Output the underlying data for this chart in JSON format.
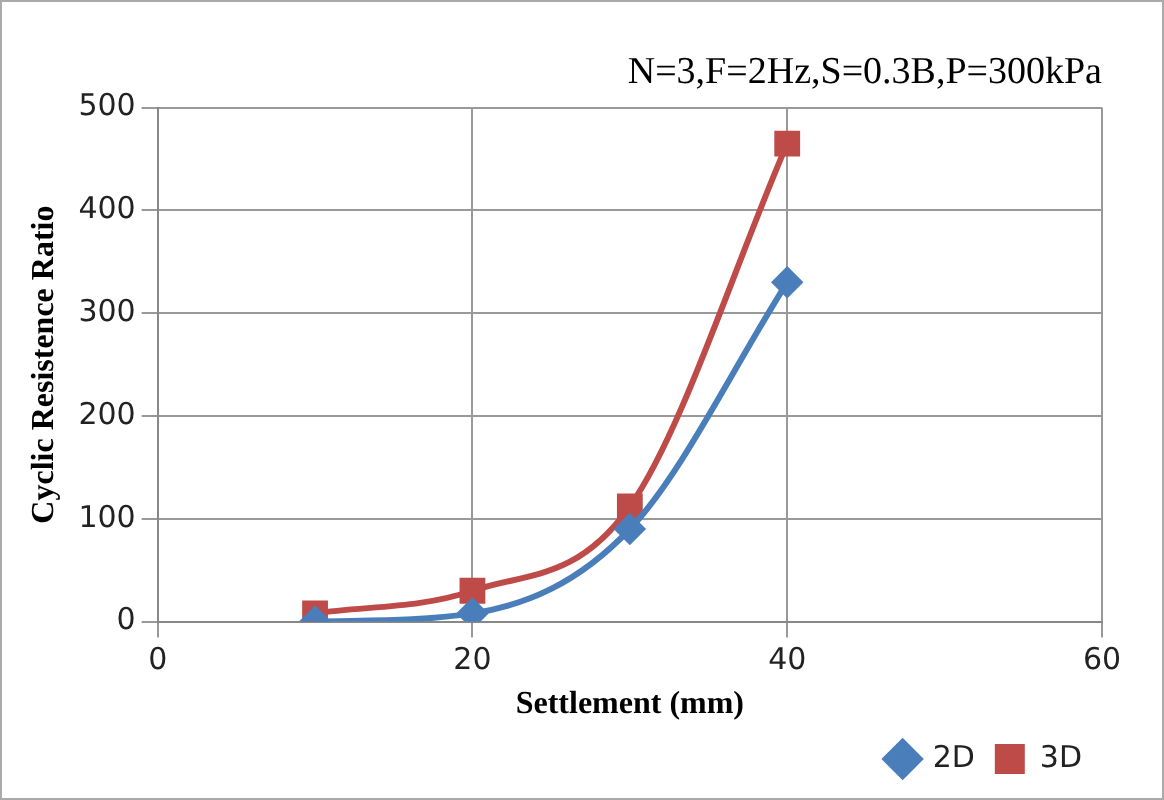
{
  "chart_data": {
    "type": "line",
    "title": "N=3,F=2Hz,S=0.3B,P=300kPa",
    "xlabel": "Settlement (mm)",
    "ylabel": "Cyclic Resistence Ratio",
    "series": [
      {
        "name": "2D",
        "color": "#4a7ebb",
        "marker": "diamond",
        "x": [
          10,
          20,
          30,
          40
        ],
        "values": [
          0,
          8,
          90,
          330
        ]
      },
      {
        "name": "3D",
        "color": "#be4b48",
        "marker": "square",
        "x": [
          10,
          20,
          30,
          40
        ],
        "values": [
          8,
          30,
          112,
          465
        ]
      }
    ],
    "xlim": [
      0,
      60
    ],
    "xticks": [
      0,
      20,
      40,
      60
    ],
    "ylim": [
      0,
      500
    ],
    "yticks": [
      0,
      100,
      200,
      300,
      400,
      500
    ],
    "grid": true,
    "legend": "bottom",
    "line_style": "solid"
  }
}
